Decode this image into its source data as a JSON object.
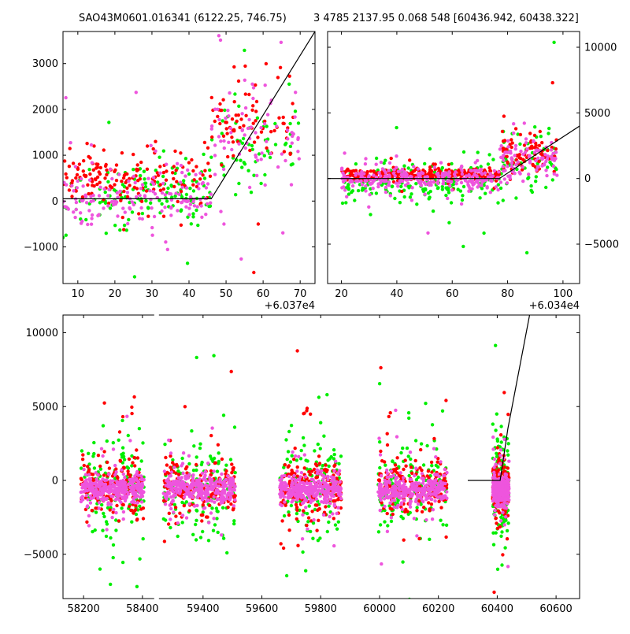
{
  "title_left": "SAO43M0601.016341 (6122.25, 746.75)",
  "title_right": "3 4785 2137.95 0.068 548 [60436.942, 60438.322]",
  "colors": {
    "green": "#00ee00",
    "red": "#ff0000",
    "pink": "#ee55dd",
    "line": "#000000"
  },
  "chart_data": [
    {
      "type": "scatter",
      "panel": "top-left",
      "xlim": [
        6,
        74
      ],
      "ylim": [
        -1800,
        3700
      ],
      "x_offset_label": "+6.037e4",
      "xticks": [
        10,
        20,
        30,
        40,
        50,
        60,
        70
      ],
      "xtick_labels": [
        "10",
        "20",
        "30",
        "40",
        "50",
        "60",
        "70"
      ],
      "yticks": [
        -1000,
        0,
        1000,
        2000,
        3000
      ],
      "ytick_labels": [
        "−1000",
        "0",
        "1000",
        "2000",
        "3000"
      ],
      "ytick_side": "left",
      "model_line": {
        "x": [
          6,
          46,
          74
        ],
        "y": [
          50,
          50,
          3700
        ]
      },
      "series": [
        {
          "color": "green",
          "clusters": [
            {
              "x": [
                6,
                46
              ],
              "y_center": 150,
              "y_spread": 650,
              "n": 140
            },
            {
              "x": [
                46,
                70
              ],
              "y_center": 1300,
              "y_spread": 900,
              "n": 60
            }
          ]
        },
        {
          "color": "red",
          "clusters": [
            {
              "x": [
                6,
                46
              ],
              "y_center": 500,
              "y_spread": 500,
              "n": 160
            },
            {
              "x": [
                46,
                70
              ],
              "y_center": 1700,
              "y_spread": 900,
              "n": 80
            }
          ]
        },
        {
          "color": "pink",
          "clusters": [
            {
              "x": [
                6,
                46
              ],
              "y_center": 100,
              "y_spread": 700,
              "n": 160
            },
            {
              "x": [
                46,
                70
              ],
              "y_center": 1500,
              "y_spread": 900,
              "n": 80
            }
          ]
        }
      ]
    },
    {
      "type": "scatter",
      "panel": "top-right",
      "xlim": [
        15,
        106
      ],
      "ylim": [
        -8000,
        11200
      ],
      "x_offset_label": "+6.034e4",
      "xticks": [
        20,
        40,
        60,
        80,
        100
      ],
      "xtick_labels": [
        "20",
        "40",
        "60",
        "80",
        "100"
      ],
      "yticks": [
        -5000,
        0,
        5000,
        10000
      ],
      "ytick_labels": [
        "−5000",
        "0",
        "5000",
        "10000"
      ],
      "ytick_side": "right",
      "model_line": {
        "x": [
          15,
          77,
          106
        ],
        "y": [
          0,
          0,
          4000
        ]
      },
      "series": [
        {
          "color": "green",
          "clusters": [
            {
              "x": [
                20,
                77
              ],
              "y_center": -300,
              "y_spread": 1500,
              "n": 200
            },
            {
              "x": [
                77,
                98
              ],
              "y_center": 1500,
              "y_spread": 2500,
              "n": 70
            }
          ]
        },
        {
          "color": "red",
          "clusters": [
            {
              "x": [
                20,
                77
              ],
              "y_center": 300,
              "y_spread": 500,
              "n": 260
            },
            {
              "x": [
                77,
                98
              ],
              "y_center": 1800,
              "y_spread": 1500,
              "n": 80
            }
          ]
        },
        {
          "color": "pink",
          "clusters": [
            {
              "x": [
                20,
                77
              ],
              "y_center": 0,
              "y_spread": 900,
              "n": 260
            },
            {
              "x": [
                77,
                98
              ],
              "y_center": 1400,
              "y_spread": 1500,
              "n": 90
            }
          ]
        }
      ]
    },
    {
      "type": "scatter",
      "panel": "bottom",
      "xlim": [
        58130,
        60680
      ],
      "ylim": [
        -8000,
        11200
      ],
      "x_break": [
        58440,
        59250
      ],
      "xticks": [
        58200,
        58400,
        59400,
        59600,
        59800,
        60000,
        60200,
        60400,
        60600
      ],
      "xtick_labels": [
        "58200",
        "58400",
        "59400",
        "59600",
        "59800",
        "60000",
        "60200",
        "60400",
        "60600"
      ],
      "yticks": [
        -5000,
        0,
        5000,
        10000
      ],
      "ytick_labels": [
        "−5000",
        "0",
        "5000",
        "10000"
      ],
      "ytick_side": "left",
      "model_line": {
        "x": [
          60300,
          60410,
          60436,
          60510
        ],
        "y": [
          0,
          0,
          3500,
          11200
        ]
      },
      "seasons": [
        [
          58190,
          58405
        ],
        [
          59265,
          59510
        ],
        [
          59660,
          59870
        ],
        [
          59995,
          60230
        ],
        [
          60385,
          60440
        ]
      ],
      "series": [
        {
          "color": "green",
          "y_center": -500,
          "y_spread": 3200,
          "n_per_season": 140
        },
        {
          "color": "red",
          "y_center": -400,
          "y_spread": 1800,
          "n_per_season": 180
        },
        {
          "color": "pink",
          "y_center": -600,
          "y_spread": 900,
          "n_per_season": 320
        }
      ]
    }
  ]
}
